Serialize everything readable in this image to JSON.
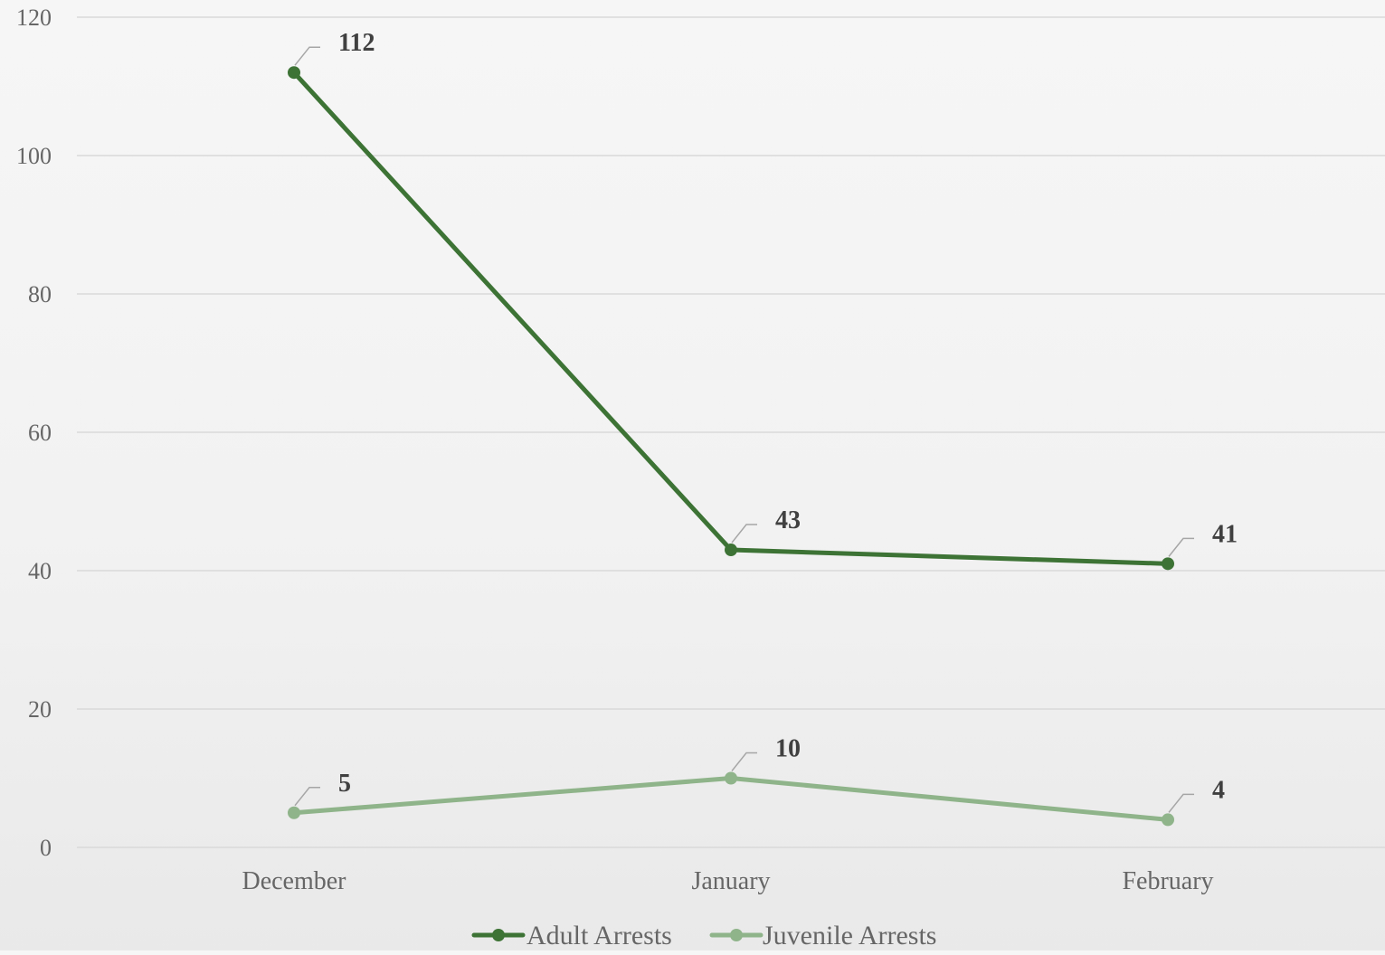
{
  "chart_data": {
    "type": "line",
    "categories": [
      "December",
      "January",
      "February"
    ],
    "series": [
      {
        "name": "Adult Arrests",
        "values": [
          112,
          43,
          41
        ],
        "color": "#3d7335"
      },
      {
        "name": "Juvenile Arrests",
        "values": [
          5,
          10,
          4
        ],
        "color": "#8fb48a"
      }
    ],
    "y_ticks": [
      "0",
      "20",
      "40",
      "60",
      "80",
      "100",
      "120"
    ],
    "ylim": [
      0,
      120
    ],
    "grid": true,
    "legend_position": "bottom-center",
    "data_labels": true,
    "title": "",
    "xlabel": "",
    "ylabel": ""
  }
}
